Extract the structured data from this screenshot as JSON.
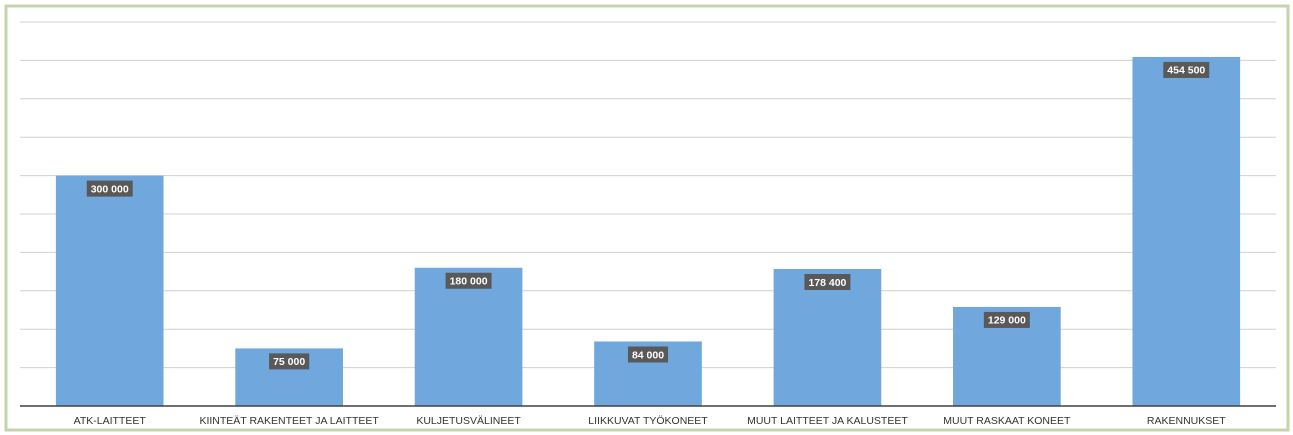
{
  "chart_data": {
    "type": "bar",
    "categories": [
      "ATK-LAITTEET",
      "KIINTEÄT RAKENTEET JA LAITTEET",
      "KULJETUSVÄLINEET",
      "LIIKKUVAT TYÖKONEET",
      "MUUT LAITTEET JA KALUSTEET",
      "MUUT RASKAAT KONEET",
      "RAKENNUKSET"
    ],
    "values": [
      300000,
      75000,
      180000,
      84000,
      178400,
      129000,
      454500
    ],
    "value_labels": [
      "300 000",
      "75 000",
      "180 000",
      "84 000",
      "178 400",
      "129 000",
      "454 500"
    ],
    "color": "#70a7dc",
    "ylim": [
      0,
      500000
    ],
    "yticks": [
      0,
      50000,
      100000,
      150000,
      200000,
      250000,
      300000,
      350000,
      400000,
      450000,
      500000
    ],
    "grid": true
  }
}
